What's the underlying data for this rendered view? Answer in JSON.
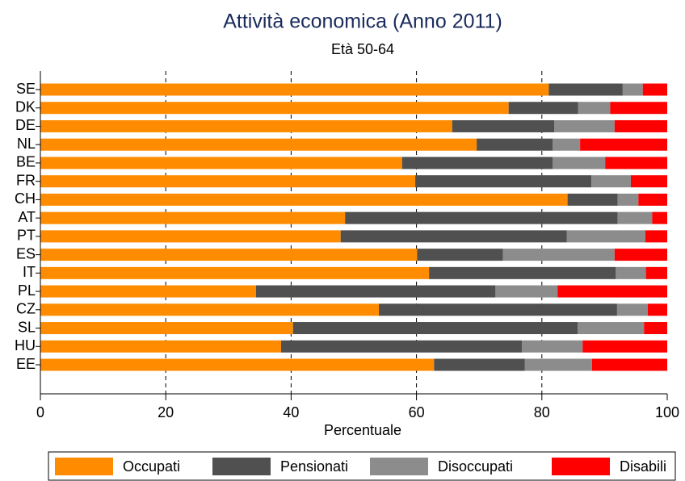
{
  "chart_data": {
    "type": "stacked-bar",
    "orientation": "horizontal",
    "title": "Attività economica (Anno 2011)",
    "subtitle": "Età 50-64",
    "xlabel": "Percentuale",
    "categories": [
      "SE",
      "DK",
      "DE",
      "NL",
      "BE",
      "FR",
      "CH",
      "AT",
      "PT",
      "ES",
      "IT",
      "PL",
      "CZ",
      "SL",
      "HU",
      "EE"
    ],
    "series": [
      {
        "name": "Occupati",
        "color": "#ff8c00",
        "values": [
          81.1,
          74.7,
          65.7,
          69.6,
          57.7,
          59.8,
          84.1,
          48.6,
          47.9,
          60.1,
          62.0,
          34.4,
          54.0,
          40.3,
          38.4,
          62.8
        ]
      },
      {
        "name": "Pensionati",
        "color": "#505050",
        "values": [
          11.8,
          11.1,
          16.3,
          12.1,
          24.0,
          28.1,
          8.0,
          43.5,
          36.1,
          13.7,
          29.8,
          38.2,
          38.0,
          45.4,
          38.4,
          14.5
        ]
      },
      {
        "name": "Disoccupati",
        "color": "#8c8c8c",
        "values": [
          3.2,
          5.1,
          9.6,
          4.4,
          8.4,
          6.3,
          3.3,
          5.5,
          12.5,
          17.8,
          4.8,
          9.9,
          4.9,
          10.6,
          9.7,
          10.7
        ]
      },
      {
        "name": "Disabili",
        "color": "#ff0000",
        "values": [
          3.9,
          9.1,
          8.4,
          13.9,
          9.9,
          5.8,
          4.6,
          2.4,
          3.5,
          8.4,
          3.4,
          17.5,
          3.1,
          3.7,
          13.5,
          12.0
        ]
      }
    ],
    "xlim": [
      0,
      100
    ],
    "xticks": [
      0,
      20,
      40,
      60,
      80,
      100
    ],
    "grid": true,
    "legend": "bottom"
  }
}
